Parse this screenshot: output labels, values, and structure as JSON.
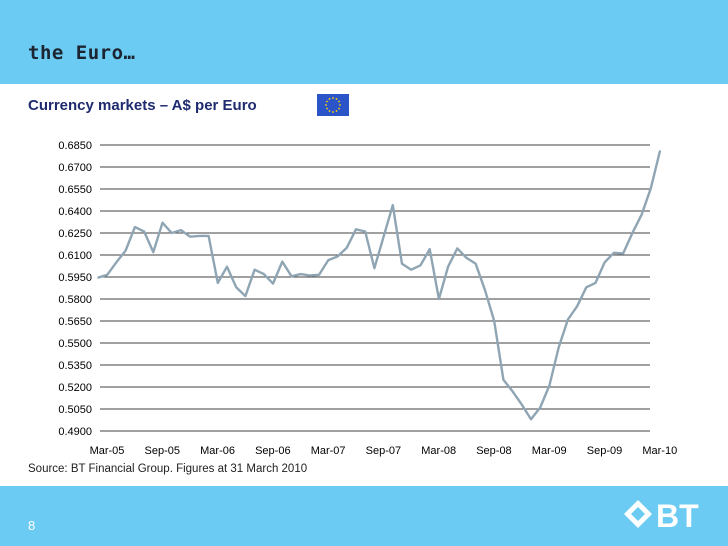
{
  "slide": {
    "heading": "the Euro…",
    "subtitle": "Currency markets – A$ per Euro",
    "source": "Source: BT Financial Group. Figures at 31 March 2010",
    "page_number": "8",
    "logo_text": "BT"
  },
  "colors": {
    "band": "#6ccbf2",
    "line": "#8fa5b4",
    "subtitle": "#1e2b6f",
    "flag": "#2a54c8",
    "flag_stars": "#ffd200"
  },
  "icons": {
    "flag": "eu-flag-icon",
    "logo": "bt-logo-icon"
  },
  "chart_data": {
    "type": "line",
    "title": "",
    "xlabel": "",
    "ylabel": "",
    "ylim": [
      0.49,
      0.685
    ],
    "yticks": [
      "0.6850",
      "0.6700",
      "0.6550",
      "0.6400",
      "0.6250",
      "0.6100",
      "0.5950",
      "0.5800",
      "0.5650",
      "0.5500",
      "0.5350",
      "0.5200",
      "0.5050",
      "0.4900"
    ],
    "x_tick_labels": [
      "Mar-05",
      "Sep-05",
      "Mar-06",
      "Sep-06",
      "Mar-07",
      "Sep-07",
      "Mar-08",
      "Sep-08",
      "Mar-09",
      "Sep-09",
      "Mar-10"
    ],
    "x_tick_indices": [
      0,
      6,
      12,
      18,
      24,
      30,
      36,
      42,
      48,
      54,
      60
    ],
    "grid": true,
    "legend": "none",
    "series": [
      {
        "values": [
          0.5945,
          0.5965,
          0.605,
          0.613,
          0.629,
          0.626,
          0.612,
          0.632,
          0.625,
          0.627,
          0.6225,
          0.623,
          0.623,
          0.591,
          0.602,
          0.588,
          0.582,
          0.6,
          0.597,
          0.5905,
          0.6055,
          0.5955,
          0.597,
          0.596,
          0.5965,
          0.6065,
          0.609,
          0.615,
          0.6275,
          0.626,
          0.601,
          0.6225,
          0.644,
          0.604,
          0.6,
          0.603,
          0.614,
          0.58,
          0.602,
          0.6145,
          0.608,
          0.604,
          0.586,
          0.565,
          0.525,
          0.517,
          0.508,
          0.498,
          0.506,
          0.521,
          0.547,
          0.566,
          0.575,
          0.588,
          0.591,
          0.605,
          0.6115,
          0.611,
          0.625,
          0.6375,
          0.6555,
          0.681
        ]
      }
    ]
  }
}
